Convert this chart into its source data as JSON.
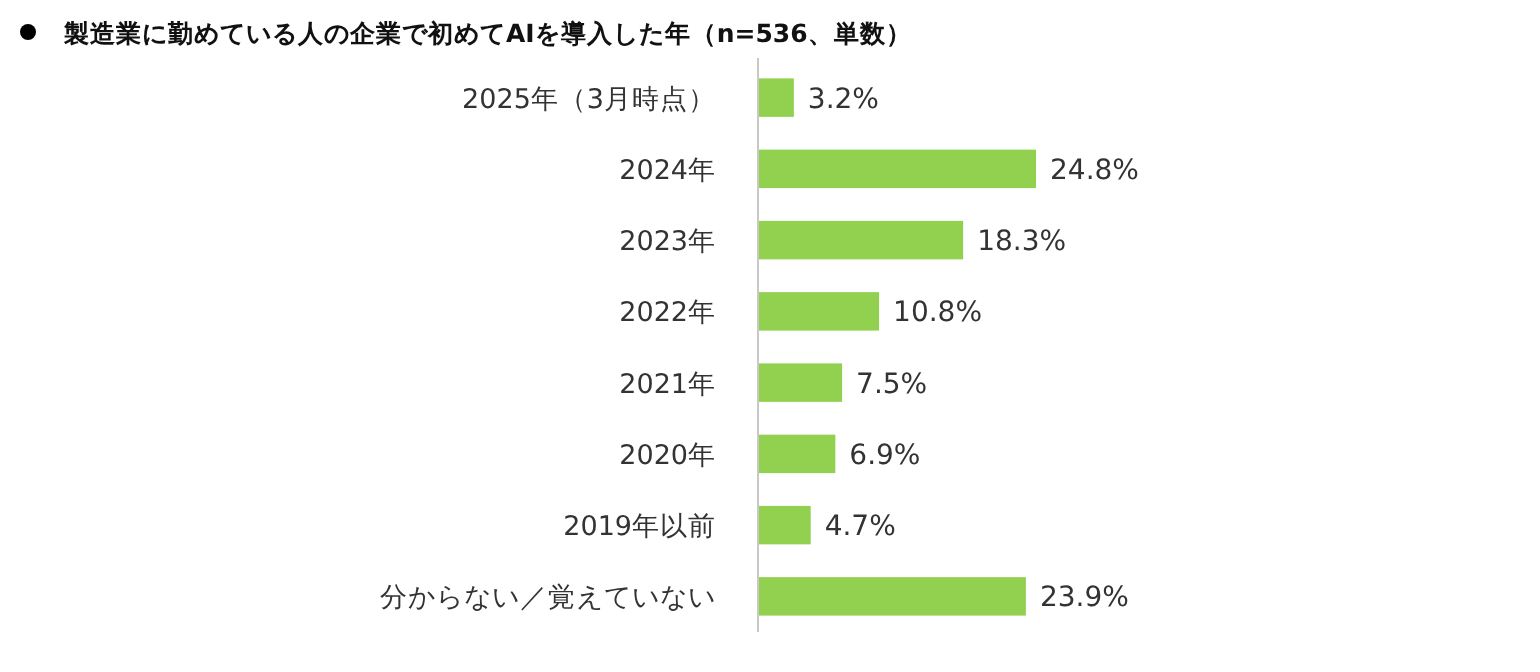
{
  "chart_data": {
    "type": "bar",
    "orientation": "horizontal",
    "title": "製造業に勤めている人の企業で初めてAIを導入した年（n=536、単数）",
    "categories": [
      "2025年（3月時点）",
      "2024年",
      "2023年",
      "2022年",
      "2021年",
      "2020年",
      "2019年以前",
      "分からない／覚えていない"
    ],
    "values": [
      3.2,
      24.8,
      18.3,
      10.8,
      7.5,
      6.9,
      4.7,
      23.9
    ],
    "value_labels": [
      "3.2%",
      "24.8%",
      "18.3%",
      "10.8%",
      "7.5%",
      "6.9%",
      "4.7%",
      "23.9%"
    ],
    "color": "#92d050"
  }
}
